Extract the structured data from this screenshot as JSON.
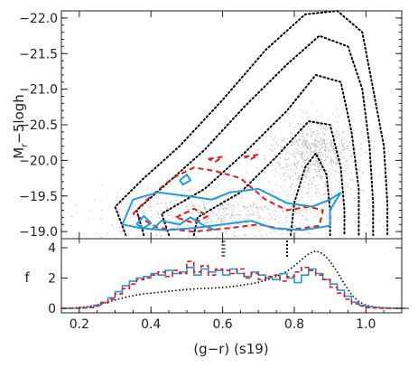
{
  "chart_data": [
    {
      "panel": "top",
      "type": "scatter",
      "xlabel": "",
      "ylabel": "M_r − 5logh",
      "ylabel_main": "M",
      "ylabel_sub": "r",
      "ylabel_rest": "−5logh",
      "xlim": [
        0.15,
        1.1
      ],
      "ylim": [
        -18.9,
        -22.1
      ],
      "yticks": [
        -22.0,
        -21.5,
        -21.0,
        -20.5,
        -20.0,
        -19.5,
        -19.0
      ],
      "ytick_labels": [
        "−22.0",
        "−21.5",
        "−21.0",
        "−20.5",
        "−20.0",
        "−19.5",
        "−19.0"
      ],
      "background": {
        "name": "all galaxies (grey points)",
        "color": "#9a9a9a",
        "cluster_centers": [
          {
            "x": 0.85,
            "y": -20.3,
            "sx": 0.065,
            "sy": 0.45,
            "weight": 0.55
          },
          {
            "x": 0.6,
            "y": -19.4,
            "sx": 0.16,
            "sy": 0.3,
            "weight": 0.45
          }
        ]
      },
      "contours_black": {
        "color": "#000000",
        "style": "dotted",
        "levels": [
          [
            [
              0.33,
              -18.95
            ],
            [
              0.3,
              -19.35
            ],
            [
              0.38,
              -19.75
            ],
            [
              0.48,
              -20.2
            ],
            [
              0.6,
              -20.85
            ],
            [
              0.72,
              -21.55
            ],
            [
              0.83,
              -22.05
            ],
            [
              0.92,
              -22.1
            ],
            [
              0.99,
              -21.8
            ],
            [
              1.02,
              -21.0
            ],
            [
              1.05,
              -20.2
            ],
            [
              1.06,
              -19.4
            ],
            [
              1.06,
              -18.95
            ]
          ],
          [
            [
              0.38,
              -18.95
            ],
            [
              0.36,
              -19.3
            ],
            [
              0.45,
              -19.7
            ],
            [
              0.55,
              -20.15
            ],
            [
              0.66,
              -20.75
            ],
            [
              0.78,
              -21.35
            ],
            [
              0.87,
              -21.75
            ],
            [
              0.95,
              -21.6
            ],
            [
              0.99,
              -21.0
            ],
            [
              1.01,
              -20.2
            ],
            [
              1.02,
              -19.4
            ],
            [
              1.02,
              -18.95
            ]
          ],
          [
            [
              0.45,
              -18.95
            ],
            [
              0.43,
              -19.25
            ],
            [
              0.55,
              -19.6
            ],
            [
              0.66,
              -20.1
            ],
            [
              0.78,
              -20.7
            ],
            [
              0.86,
              -21.2
            ],
            [
              0.93,
              -21.1
            ],
            [
              0.96,
              -20.4
            ],
            [
              0.98,
              -19.6
            ],
            [
              0.98,
              -18.95
            ]
          ],
          [
            [
              0.52,
              -18.95
            ],
            [
              0.53,
              -19.2
            ],
            [
              0.65,
              -19.55
            ],
            [
              0.75,
              -20.05
            ],
            [
              0.84,
              -20.55
            ],
            [
              0.9,
              -20.5
            ],
            [
              0.93,
              -19.9
            ],
            [
              0.94,
              -19.3
            ],
            [
              0.94,
              -18.95
            ]
          ],
          [
            [
              0.79,
              -18.95
            ],
            [
              0.8,
              -19.4
            ],
            [
              0.83,
              -19.9
            ],
            [
              0.86,
              -20.1
            ],
            [
              0.89,
              -19.8
            ],
            [
              0.9,
              -19.3
            ],
            [
              0.9,
              -18.95
            ]
          ]
        ]
      },
      "contours_blue": {
        "color": "#1f9bdc",
        "style": "solid",
        "paths": [
          [
            [
              0.32,
              -19.1
            ],
            [
              0.35,
              -19.45
            ],
            [
              0.42,
              -19.55
            ],
            [
              0.5,
              -19.5
            ],
            [
              0.57,
              -19.45
            ],
            [
              0.62,
              -19.55
            ],
            [
              0.7,
              -19.6
            ],
            [
              0.78,
              -19.4
            ],
            [
              0.85,
              -19.35
            ],
            [
              0.9,
              -19.45
            ],
            [
              0.93,
              -19.55
            ],
            [
              0.9,
              -19.3
            ],
            [
              0.9,
              -19.08
            ],
            [
              0.82,
              -19.02
            ],
            [
              0.74,
              -19.05
            ],
            [
              0.68,
              -19.15
            ],
            [
              0.6,
              -19.1
            ],
            [
              0.52,
              -19.05
            ],
            [
              0.44,
              -19.02
            ],
            [
              0.37,
              -19.05
            ],
            [
              0.32,
              -19.1
            ]
          ],
          [
            [
              0.4,
              -19.02
            ],
            [
              0.43,
              -19.15
            ],
            [
              0.48,
              -19.1
            ],
            [
              0.51,
              -19.2
            ],
            [
              0.55,
              -19.08
            ],
            [
              0.58,
              -19.02
            ]
          ],
          [
            [
              0.48,
              -19.72
            ],
            [
              0.5,
              -19.8
            ],
            [
              0.51,
              -19.72
            ],
            [
              0.49,
              -19.66
            ],
            [
              0.48,
              -19.72
            ]
          ],
          [
            [
              0.36,
              -19.1
            ],
            [
              0.38,
              -19.22
            ],
            [
              0.4,
              -19.12
            ],
            [
              0.38,
              -19.05
            ],
            [
              0.36,
              -19.1
            ]
          ]
        ]
      },
      "contours_red": {
        "color": "#e31a1c",
        "style": "dashed",
        "paths": [
          [
            [
              0.35,
              -19.25
            ],
            [
              0.4,
              -19.5
            ],
            [
              0.46,
              -19.75
            ],
            [
              0.52,
              -19.9
            ],
            [
              0.58,
              -19.85
            ],
            [
              0.65,
              -19.75
            ],
            [
              0.72,
              -19.45
            ],
            [
              0.78,
              -19.3
            ],
            [
              0.84,
              -19.35
            ],
            [
              0.88,
              -19.3
            ],
            [
              0.87,
              -19.08
            ],
            [
              0.78,
              -19.02
            ],
            [
              0.7,
              -19.1
            ],
            [
              0.62,
              -19.05
            ],
            [
              0.52,
              -19.0
            ],
            [
              0.42,
              -19.05
            ],
            [
              0.35,
              -19.25
            ]
          ],
          [
            [
              0.56,
              -20.02
            ],
            [
              0.6,
              -20.05
            ],
            [
              0.58,
              -19.98
            ],
            [
              0.56,
              -20.02
            ]
          ],
          [
            [
              0.66,
              -20.05
            ],
            [
              0.7,
              -20.08
            ],
            [
              0.68,
              -20.02
            ],
            [
              0.66,
              -20.05
            ]
          ],
          [
            [
              0.47,
              -19.2
            ],
            [
              0.52,
              -19.32
            ],
            [
              0.56,
              -19.22
            ],
            [
              0.52,
              -19.12
            ],
            [
              0.47,
              -19.2
            ]
          ]
        ]
      }
    },
    {
      "panel": "bottom",
      "type": "line",
      "xlabel": "(g−r) (s19)",
      "ylabel": "f",
      "xlim": [
        0.15,
        1.1
      ],
      "ylim": [
        -0.3,
        4.6
      ],
      "xticks": [
        0.2,
        0.4,
        0.6,
        0.8,
        1.0
      ],
      "xtick_labels": [
        "0.2",
        "0.4",
        "0.6",
        "0.8",
        "1.0"
      ],
      "yticks": [
        0,
        2,
        4
      ],
      "ytick_labels": [
        "0",
        "2",
        "4"
      ],
      "x": [
        0.15,
        0.18,
        0.2,
        0.22,
        0.24,
        0.26,
        0.28,
        0.3,
        0.32,
        0.34,
        0.36,
        0.38,
        0.4,
        0.42,
        0.44,
        0.46,
        0.48,
        0.5,
        0.52,
        0.54,
        0.56,
        0.58,
        0.6,
        0.62,
        0.64,
        0.66,
        0.68,
        0.7,
        0.72,
        0.74,
        0.76,
        0.78,
        0.8,
        0.82,
        0.84,
        0.86,
        0.88,
        0.9,
        0.92,
        0.94,
        0.96,
        0.98,
        1.0,
        1.02,
        1.04,
        1.06,
        1.08,
        1.1
      ],
      "series": [
        {
          "style": "dotted",
          "color": "#000000",
          "values": [
            0.0,
            0.02,
            0.05,
            0.1,
            0.18,
            0.28,
            0.42,
            0.55,
            0.68,
            0.78,
            0.88,
            0.95,
            1.0,
            1.05,
            1.1,
            1.15,
            1.2,
            1.25,
            1.28,
            1.3,
            1.32,
            1.35,
            1.38,
            1.42,
            1.48,
            1.55,
            1.62,
            1.72,
            1.85,
            2.0,
            2.2,
            2.45,
            2.8,
            3.2,
            3.6,
            3.8,
            3.6,
            3.1,
            2.4,
            1.6,
            0.9,
            0.45,
            0.2,
            0.1,
            0.05,
            0.03,
            0.02,
            0.01
          ]
        },
        {
          "style": "solid",
          "color": "#1f9bdc",
          "values": [
            0.0,
            0.0,
            0.02,
            0.08,
            0.2,
            0.4,
            0.7,
            1.1,
            1.5,
            1.8,
            2.0,
            2.1,
            2.3,
            2.2,
            2.5,
            2.3,
            2.4,
            2.7,
            2.2,
            2.6,
            2.4,
            2.5,
            2.2,
            2.6,
            2.3,
            2.1,
            2.4,
            2.2,
            2.0,
            1.9,
            2.3,
            2.0,
            1.7,
            2.2,
            2.6,
            2.3,
            1.9,
            1.6,
            1.2,
            0.8,
            0.4,
            0.2,
            0.1,
            0.05,
            0.02,
            0.0,
            0.0,
            0.0
          ]
        },
        {
          "style": "dashed",
          "color": "#e31a1c",
          "values": [
            0.0,
            0.0,
            0.02,
            0.05,
            0.15,
            0.35,
            0.6,
            0.95,
            1.3,
            1.6,
            1.9,
            2.0,
            2.2,
            2.4,
            2.1,
            2.5,
            2.3,
            3.1,
            2.4,
            2.8,
            2.2,
            2.6,
            2.5,
            2.3,
            2.6,
            2.0,
            2.3,
            1.9,
            2.1,
            2.2,
            1.8,
            2.1,
            2.4,
            2.7,
            2.5,
            2.2,
            1.9,
            1.4,
            1.0,
            0.6,
            0.3,
            0.15,
            0.05,
            0.02,
            0.0,
            0.0,
            0.0,
            0.0
          ]
        }
      ],
      "markers": [
        {
          "x": 0.6,
          "color": "#e31a1c"
        },
        {
          "x": 0.6,
          "color": "#1f9bdc"
        },
        {
          "x": 0.78,
          "color": "#000000"
        }
      ]
    }
  ]
}
